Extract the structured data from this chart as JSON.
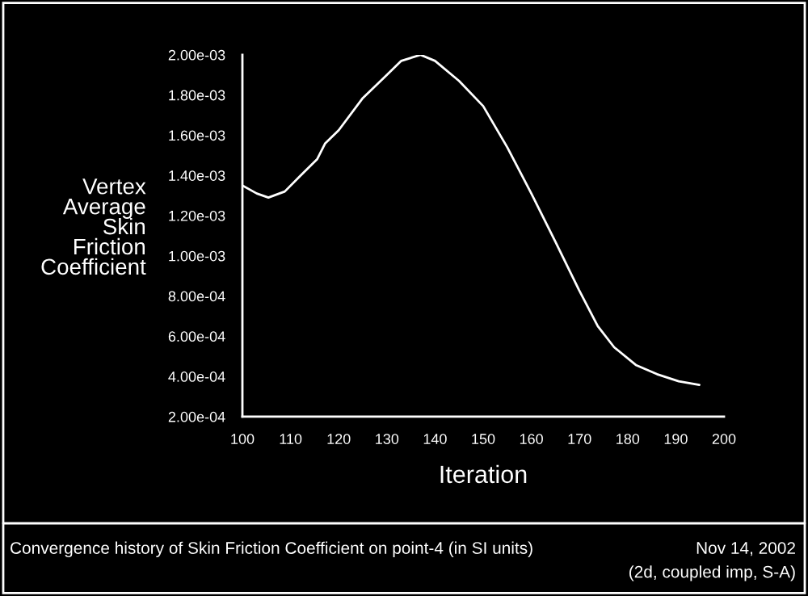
{
  "chart_data": {
    "type": "line",
    "xlabel": "Iteration",
    "ylabel": "Vertex\nAverage\nSkin\nFriction\nCoefficient",
    "x": [
      100,
      103,
      105.4,
      108.8,
      112.1,
      115.5,
      117.2,
      120,
      125,
      130,
      133,
      137,
      140,
      145,
      150,
      155,
      160,
      165,
      169.9,
      173.8,
      177.2,
      181.7,
      186.1,
      190.6,
      194.9
    ],
    "series": [
      {
        "color": "#ffffff",
        "values": [
          0.00135,
          0.00131,
          0.00129,
          0.00132,
          0.0014,
          0.00148,
          0.00156,
          0.001625,
          0.001785,
          0.0019,
          0.00197,
          0.002,
          0.00197,
          0.00187,
          0.001745,
          0.00154,
          0.00131,
          0.00107,
          0.00083,
          0.00065,
          0.000545,
          0.000457,
          0.000411,
          0.000376,
          0.000358
        ]
      }
    ],
    "xlim": [
      100,
      200
    ],
    "xticks": [
      100,
      110,
      120,
      130,
      140,
      150,
      160,
      170,
      180,
      190,
      200
    ],
    "ylim": [
      0.0002,
      0.002
    ],
    "yticks": [
      {
        "value": 0.0002,
        "label": "2.00e-04"
      },
      {
        "value": 0.0004,
        "label": "4.00e-04"
      },
      {
        "value": 0.0006,
        "label": "6.00e-04"
      },
      {
        "value": 0.0008,
        "label": "8.00e-04"
      },
      {
        "value": 0.001,
        "label": "1.00e-03"
      },
      {
        "value": 0.0012,
        "label": "1.20e-03"
      },
      {
        "value": 0.0014,
        "label": "1.40e-03"
      },
      {
        "value": 0.0016,
        "label": "1.60e-03"
      },
      {
        "value": 0.0018,
        "label": "1.80e-03"
      },
      {
        "value": 0.002,
        "label": "2.00e-03"
      }
    ],
    "grid": false,
    "legend": false,
    "marker": "none",
    "line_style": "solid",
    "annotations": [
      "Convergence history of Skin Friction Coefficient on point-4 (in SI units)",
      "Nov 14, 2002",
      "(2d, coupled imp, S-A)"
    ]
  }
}
